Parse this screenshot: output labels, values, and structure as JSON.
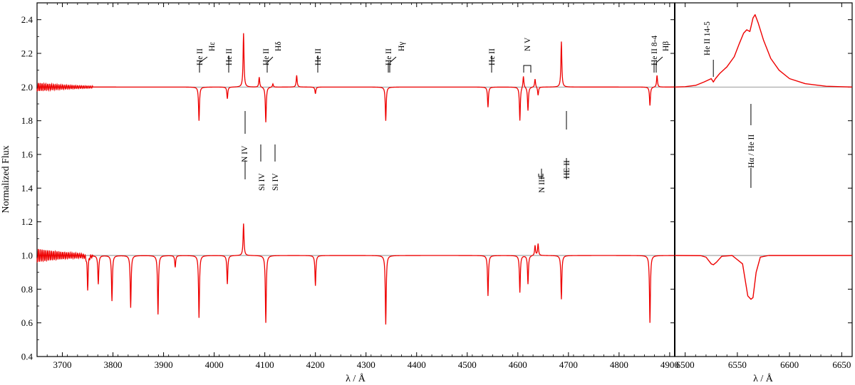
{
  "chart_data": [
    {
      "type": "line",
      "panel": "left",
      "xlabel": "λ / Å",
      "ylabel": "Normalized Flux",
      "xlim": [
        3650,
        4910
      ],
      "ylim": [
        0.4,
        2.5
      ],
      "xticks": [
        3700,
        3800,
        3900,
        4000,
        4100,
        4200,
        4300,
        4400,
        4500,
        4600,
        4700,
        4800,
        4900
      ],
      "yticks": [
        0.4,
        0.6,
        0.8,
        1.0,
        1.2,
        1.4,
        1.6,
        1.8,
        2.0,
        2.2,
        2.4
      ],
      "reference_lines": [
        1.0,
        2.0
      ],
      "series": [
        {
          "color": "#ee0000",
          "baseline": 2.0,
          "features": [
            [
              3970,
              -0.2
            ],
            [
              4026,
              -0.07
            ],
            [
              4058,
              0.32
            ],
            [
              4089,
              0.06
            ],
            [
              4102,
              -0.21
            ],
            [
              4116,
              0.02
            ],
            [
              4163,
              0.07
            ],
            [
              4200,
              -0.04
            ],
            [
              4339,
              -0.2
            ],
            [
              4541,
              -0.12
            ],
            [
              4604,
              -0.2
            ],
            [
              4611,
              0.07
            ],
            [
              4620,
              -0.14
            ],
            [
              4634,
              0.05
            ],
            [
              4640,
              -0.05
            ],
            [
              4686,
              0.27
            ],
            [
              4861,
              -0.11
            ],
            [
              4875,
              0.07
            ]
          ]
        },
        {
          "color": "#ee0000",
          "baseline": 1.0,
          "features": [
            [
              3750,
              -0.2
            ],
            [
              3771,
              -0.17
            ],
            [
              3798,
              -0.27
            ],
            [
              3835,
              -0.31
            ],
            [
              3889,
              -0.35
            ],
            [
              3923,
              -0.07
            ],
            [
              3970,
              -0.37
            ],
            [
              4026,
              -0.17
            ],
            [
              4058,
              0.19
            ],
            [
              4102,
              -0.4
            ],
            [
              4200,
              -0.18
            ],
            [
              4339,
              -0.41
            ],
            [
              4541,
              -0.24
            ],
            [
              4604,
              -0.22
            ],
            [
              4620,
              -0.17
            ],
            [
              4634,
              0.06
            ],
            [
              4640,
              0.07
            ],
            [
              4686,
              -0.26
            ],
            [
              4861,
              -0.4
            ]
          ]
        }
      ],
      "annotations": [
        {
          "text": "He II",
          "position": "top"
        },
        {
          "text": "Hε",
          "position": "top"
        },
        {
          "text": "He II",
          "position": "top"
        },
        {
          "text": "He II",
          "position": "top"
        },
        {
          "text": "Hδ",
          "position": "top"
        },
        {
          "text": "He II",
          "position": "top"
        },
        {
          "text": "He II",
          "position": "top"
        },
        {
          "text": "Hγ",
          "position": "top"
        },
        {
          "text": "He II",
          "position": "top"
        },
        {
          "text": "N V",
          "position": "top"
        },
        {
          "text": "He II 8-4",
          "position": "top"
        },
        {
          "text": "Hβ",
          "position": "top"
        },
        {
          "text": "N IV",
          "position": "middle"
        },
        {
          "text": "Si IV",
          "position": "middle"
        },
        {
          "text": "Si IV",
          "position": "middle"
        },
        {
          "text": "N III",
          "position": "middle"
        },
        {
          "text": "HE II",
          "position": "middle"
        }
      ]
    },
    {
      "type": "line",
      "panel": "right",
      "xlabel": "λ / Å",
      "ylabel": "",
      "xlim": [
        6490,
        6660
      ],
      "ylim": [
        0.4,
        2.5
      ],
      "xticks": [
        6500,
        6550,
        6600,
        6650
      ],
      "reference_lines": [
        1.0,
        2.0
      ],
      "series": [
        {
          "color": "#ee0000",
          "baseline": 2.0,
          "points": [
            [
              6490,
              2.0
            ],
            [
              6500,
              2.002
            ],
            [
              6510,
              2.01
            ],
            [
              6518,
              2.03
            ],
            [
              6525,
              2.05
            ],
            [
              6527,
              2.03
            ],
            [
              6529,
              2.05
            ],
            [
              6533,
              2.08
            ],
            [
              6540,
              2.12
            ],
            [
              6547,
              2.18
            ],
            [
              6552,
              2.26
            ],
            [
              6556,
              2.32
            ],
            [
              6559,
              2.34
            ],
            [
              6562,
              2.33
            ],
            [
              6565,
              2.41
            ],
            [
              6567,
              2.43
            ],
            [
              6570,
              2.38
            ],
            [
              6575,
              2.28
            ],
            [
              6582,
              2.17
            ],
            [
              6590,
              2.1
            ],
            [
              6600,
              2.05
            ],
            [
              6615,
              2.02
            ],
            [
              6635,
              2.005
            ],
            [
              6660,
              2.0
            ]
          ]
        },
        {
          "color": "#ee0000",
          "baseline": 1.0,
          "points": [
            [
              6490,
              1.0
            ],
            [
              6515,
              0.999
            ],
            [
              6520,
              0.99
            ],
            [
              6525,
              0.95
            ],
            [
              6527,
              0.945
            ],
            [
              6530,
              0.96
            ],
            [
              6535,
              0.995
            ],
            [
              6545,
              1.0
            ],
            [
              6555,
              0.95
            ],
            [
              6560,
              0.76
            ],
            [
              6563,
              0.74
            ],
            [
              6565,
              0.75
            ],
            [
              6568,
              0.9
            ],
            [
              6572,
              0.99
            ],
            [
              6580,
              1.0
            ],
            [
              6660,
              1.0
            ]
          ]
        }
      ],
      "annotations": [
        {
          "text": "He II 14-5",
          "position": "top"
        },
        {
          "text": "Hα / He II",
          "position": "middle"
        }
      ]
    }
  ]
}
